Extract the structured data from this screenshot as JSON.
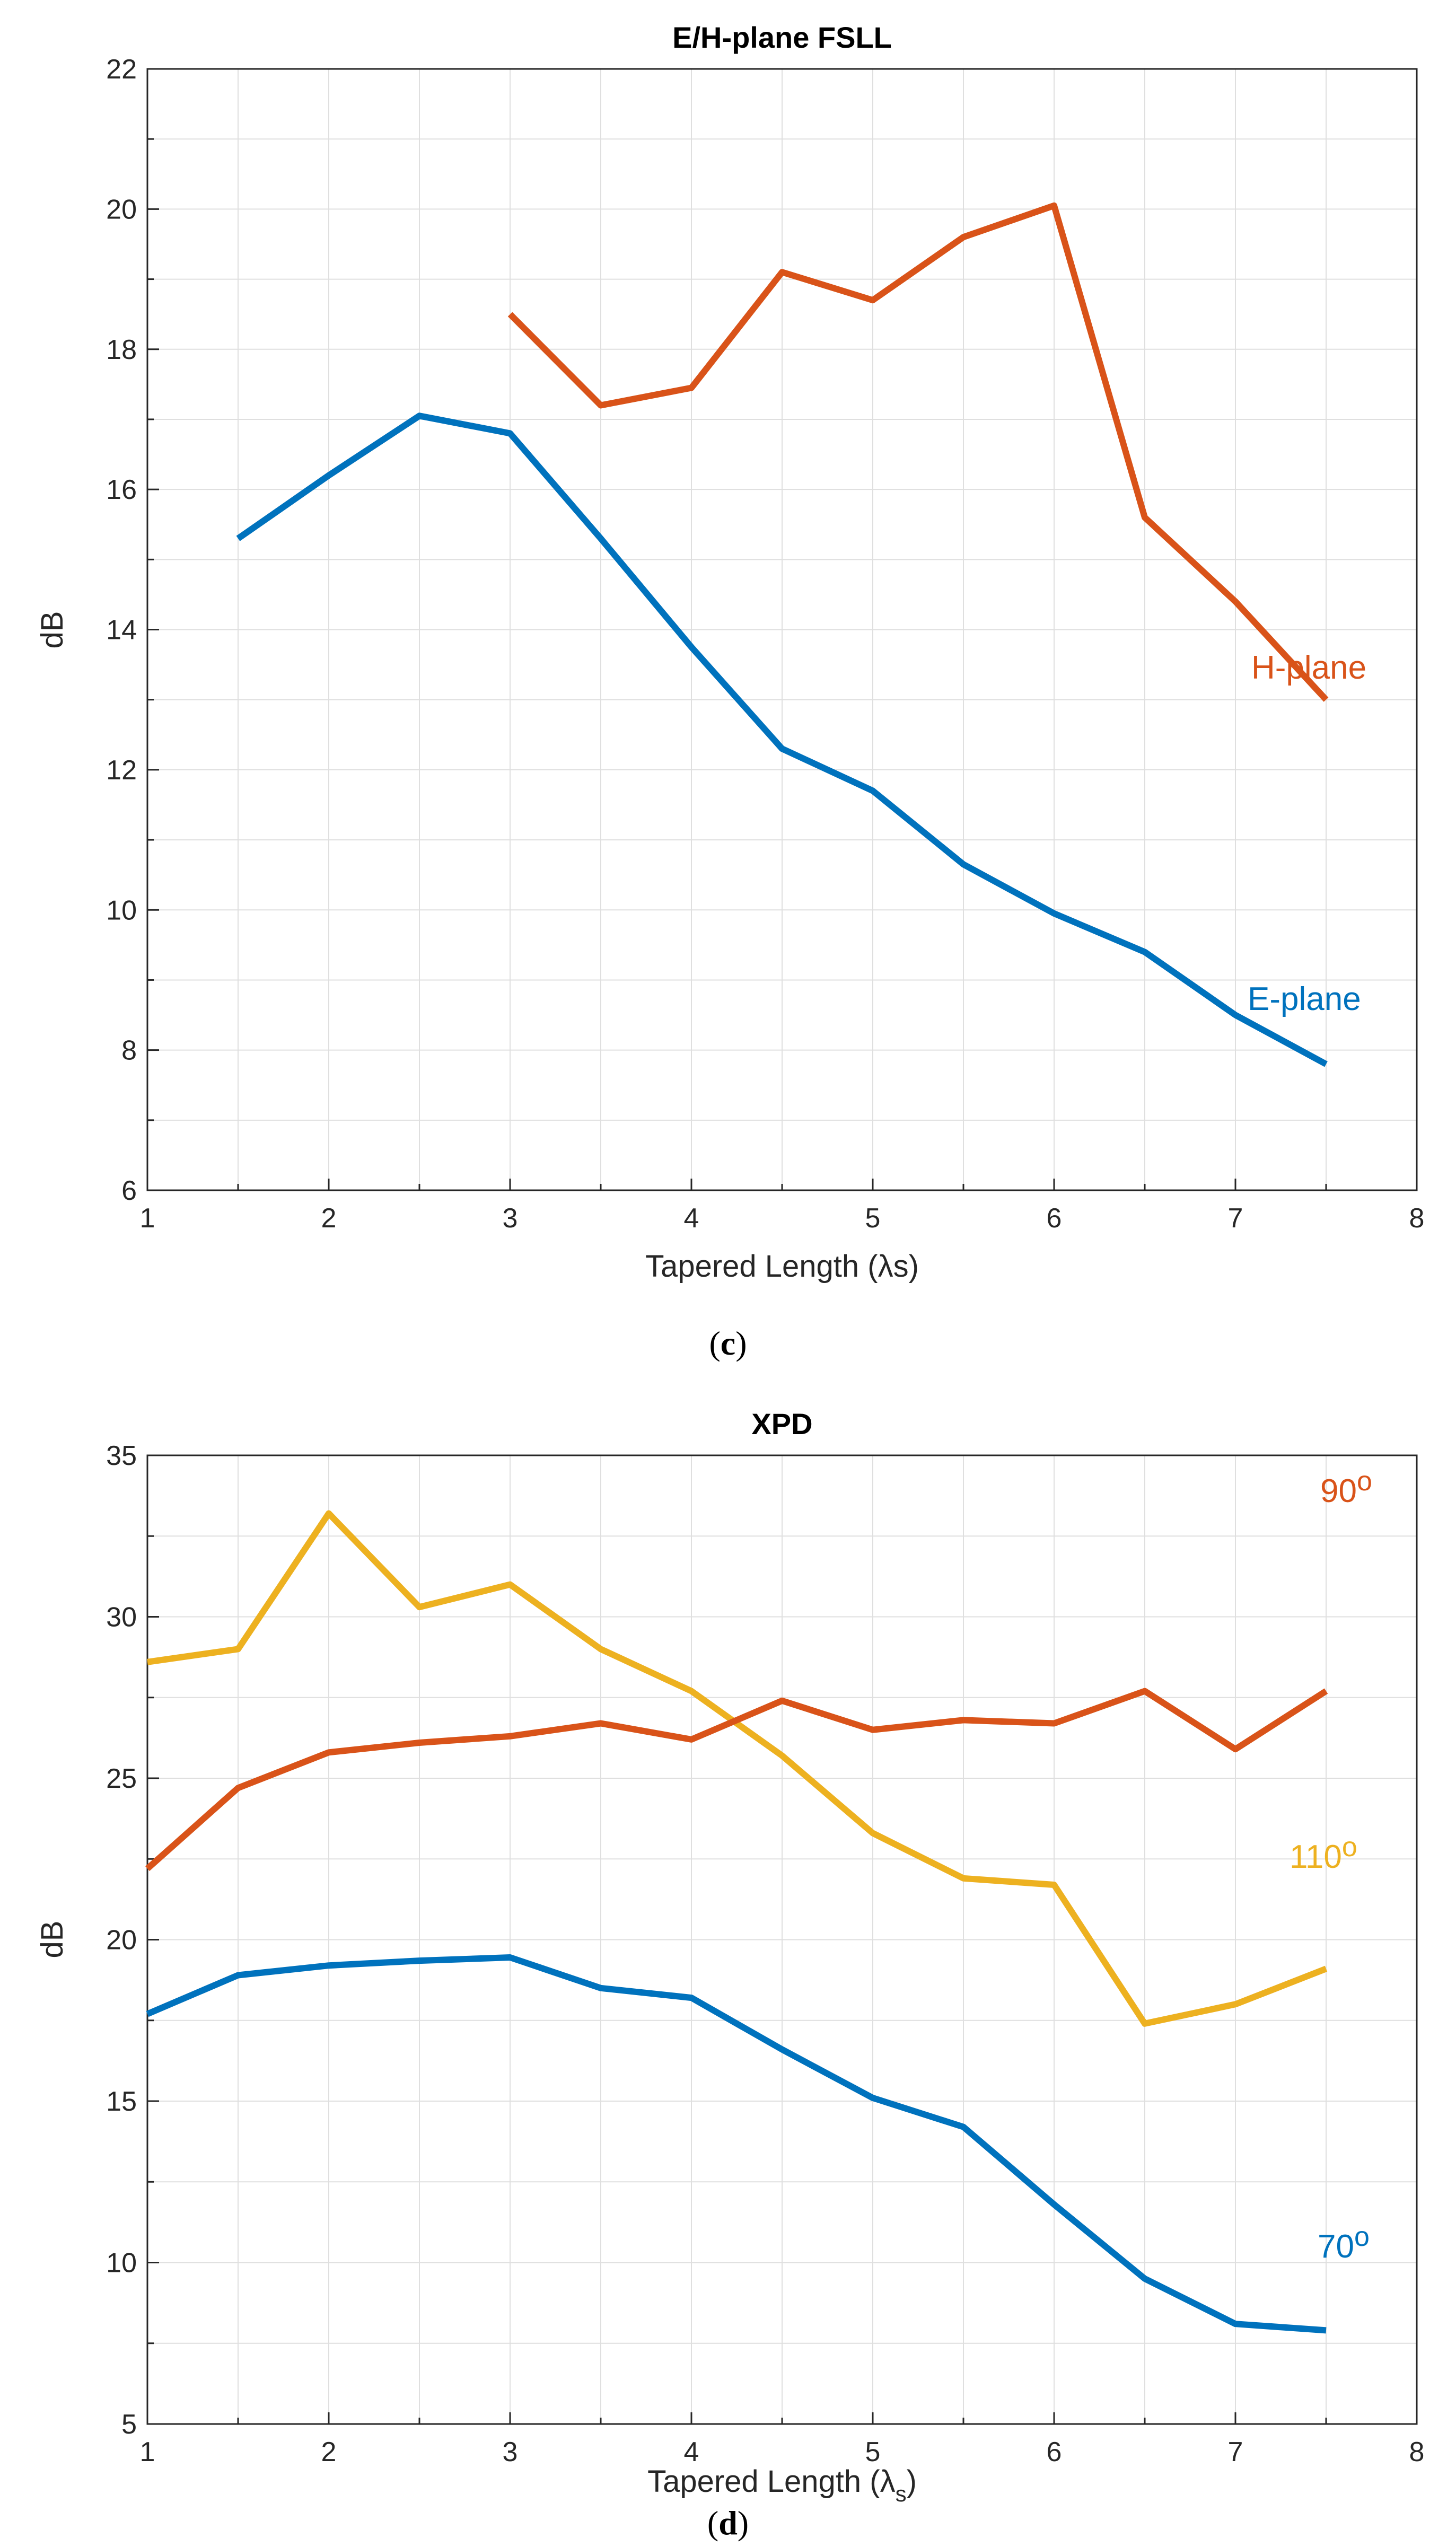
{
  "chart_data": [
    {
      "type": "line",
      "panel": "c",
      "title": "E/H-plane FSLL",
      "xlabel": "Tapered Length (λs)",
      "ylabel": "dB",
      "xlim": [
        1,
        8
      ],
      "ylim": [
        6,
        22
      ],
      "xticks": [
        1,
        2,
        3,
        4,
        5,
        6,
        7,
        8
      ],
      "yticks": [
        6,
        8,
        10,
        12,
        14,
        16,
        18,
        20,
        22
      ],
      "grid": true,
      "series": [
        {
          "name": "H-plane",
          "color": "#d95319",
          "label": "H-plane",
          "x": [
            3,
            3.5,
            4,
            4.5,
            5,
            5.5,
            6,
            6.5,
            7,
            7.5
          ],
          "y": [
            18.5,
            17.2,
            17.45,
            19.1,
            18.7,
            19.6,
            20.05,
            15.6,
            14.4,
            13.0
          ]
        },
        {
          "name": "E-plane",
          "color": "#0072bd",
          "label": "E-plane",
          "x": [
            1.5,
            2,
            2.5,
            3,
            3.5,
            4,
            4.5,
            5,
            5.5,
            6,
            6.5,
            7,
            7.5
          ],
          "y": [
            15.3,
            16.2,
            17.05,
            16.8,
            15.3,
            13.75,
            12.3,
            11.7,
            10.65,
            9.95,
            9.4,
            8.5,
            7.8
          ]
        }
      ]
    },
    {
      "type": "line",
      "panel": "d",
      "title": "XPD",
      "xlabel": "Tapered Length (λ",
      "xlabel_sub": "s",
      "xlabel_close": ")",
      "ylabel": "dB",
      "xlim": [
        1,
        8
      ],
      "ylim": [
        5,
        35
      ],
      "xticks": [
        1,
        2,
        3,
        4,
        5,
        6,
        7,
        8
      ],
      "yticks": [
        5,
        10,
        15,
        20,
        25,
        30,
        35
      ],
      "grid": true,
      "series": [
        {
          "name": "110o",
          "color": "#edb120",
          "label": "110",
          "label_sup": "o",
          "x": [
            1,
            1.5,
            2,
            2.5,
            3,
            3.5,
            4,
            4.5,
            5,
            5.5,
            6,
            6.5,
            7,
            7.5
          ],
          "y": [
            28.6,
            29.0,
            33.2,
            30.3,
            31.0,
            29.0,
            27.7,
            25.7,
            23.3,
            21.9,
            21.7,
            17.4,
            18.0,
            19.1
          ]
        },
        {
          "name": "90o",
          "color": "#d95319",
          "label": "90",
          "label_sup": "o",
          "x": [
            1,
            1.5,
            2,
            2.5,
            3,
            3.5,
            4,
            4.5,
            5,
            5.5,
            6,
            6.5,
            7,
            7.5
          ],
          "y": [
            22.2,
            24.7,
            25.8,
            26.1,
            26.3,
            26.7,
            26.2,
            27.4,
            26.5,
            26.8,
            26.7,
            27.7,
            25.9,
            27.7
          ]
        },
        {
          "name": "70o",
          "color": "#0072bd",
          "label": "70",
          "label_sup": "o",
          "x": [
            1,
            1.5,
            2,
            2.5,
            3,
            3.5,
            4,
            4.5,
            5,
            5.5,
            6,
            6.5,
            7,
            7.5
          ],
          "y": [
            17.7,
            18.9,
            19.2,
            19.35,
            19.45,
            18.5,
            18.2,
            16.6,
            15.1,
            14.2,
            11.8,
            9.5,
            8.1,
            7.9
          ]
        }
      ]
    }
  ],
  "captions": {
    "c": {
      "open": "(",
      "letter": "c",
      "close": ")"
    },
    "d": {
      "open": "(",
      "letter": "d",
      "close": ")"
    }
  }
}
